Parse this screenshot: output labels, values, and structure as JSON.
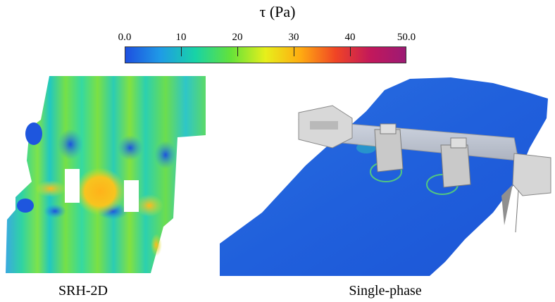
{
  "colorbar": {
    "title": "τ (Pa)",
    "ticks": [
      "0.0",
      "10",
      "20",
      "30",
      "40",
      "50.0"
    ],
    "min": 0,
    "max": 50,
    "colors": [
      "#1e4fe0",
      "#1f9be6",
      "#18d3a6",
      "#63e23a",
      "#e7ef1b",
      "#ffab11",
      "#f04525",
      "#c2185b",
      "#9c1a74"
    ]
  },
  "panels": {
    "left_label": "SRH-2D",
    "right_label": "Single-phase"
  }
}
